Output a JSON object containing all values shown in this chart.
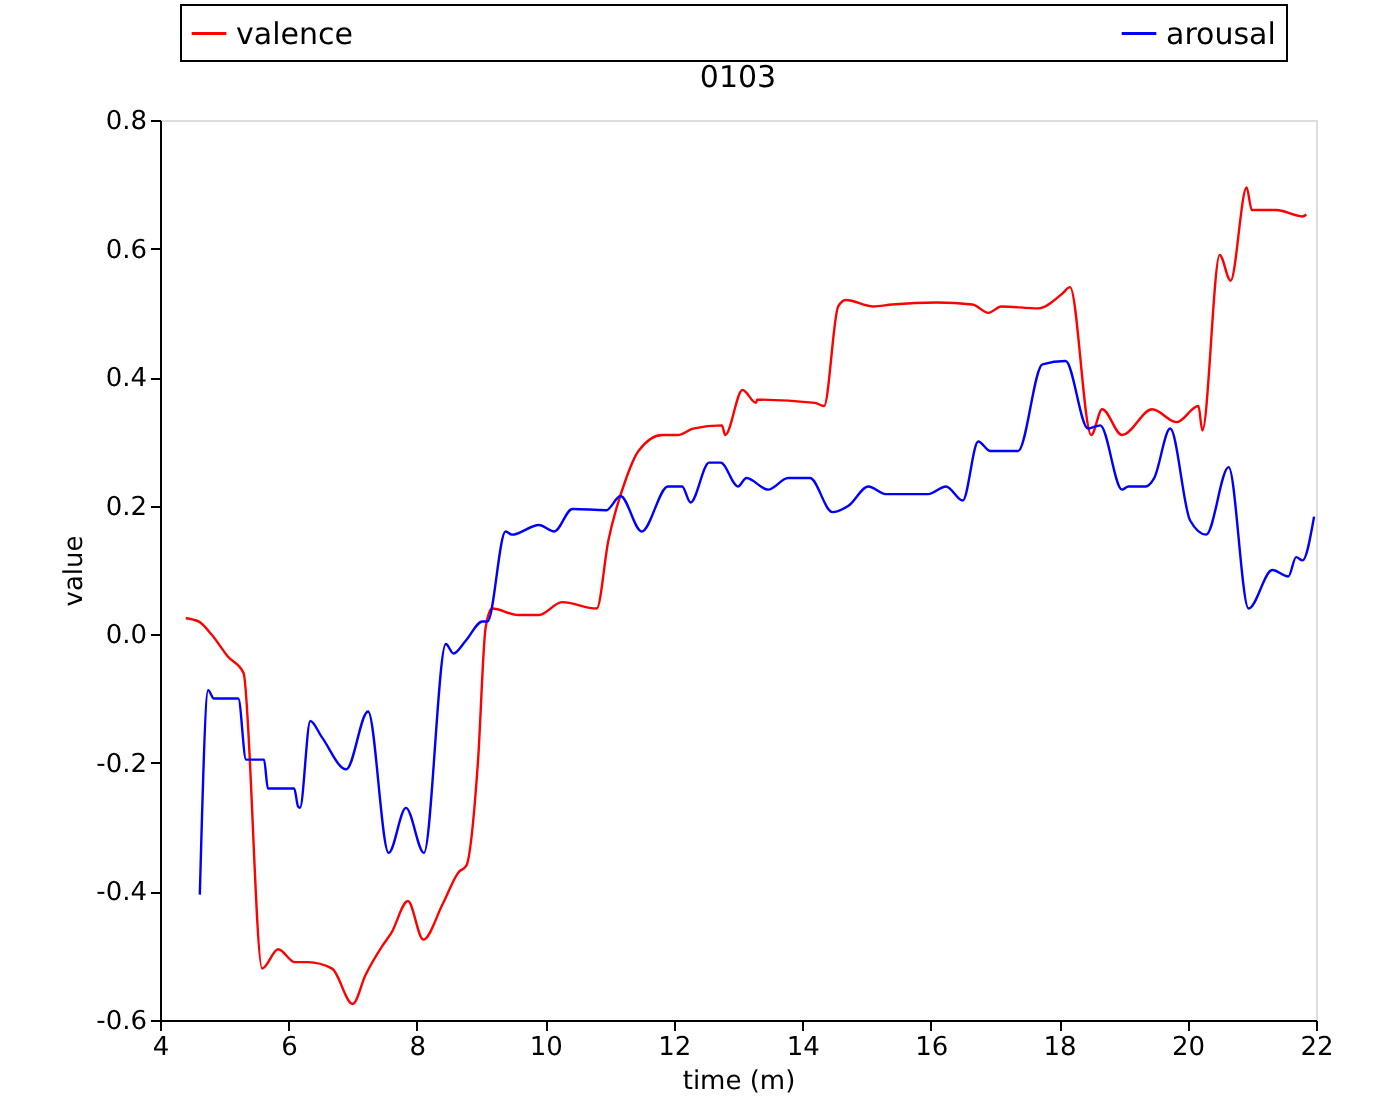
{
  "chart_data": {
    "type": "line",
    "title": "0103",
    "xlabel": "time (m)",
    "ylabel": "value",
    "xlim": [
      4,
      22
    ],
    "xticks": [
      4,
      6,
      8,
      10,
      12,
      14,
      16,
      18,
      20,
      22
    ],
    "ylim": [
      -0.6,
      0.8
    ],
    "yticks": [
      -0.6,
      -0.4,
      -0.2,
      {
        "value": 0,
        "label": "0.0"
      },
      0.2,
      0.4,
      0.6,
      0.8
    ],
    "grid": false,
    "legend": "top",
    "marker": "none",
    "line_style": "solid",
    "series": [
      {
        "name": "valence",
        "color": "#ff0000",
        "x": [
          4.4,
          4.6,
          4.8,
          5.06,
          5.3,
          5.59,
          5.84,
          6.1,
          6.3,
          6.68,
          7.0,
          7.2,
          7.46,
          7.6,
          7.86,
          8.1,
          8.4,
          8.65,
          8.77,
          8.95,
          9.07,
          9.17,
          9.58,
          9.9,
          10.26,
          10.8,
          10.98,
          11.25,
          11.45,
          11.82,
          12.07,
          12.3,
          12.75,
          12.8,
          13.07,
          13.28,
          13.3,
          14.2,
          14.34,
          14.56,
          14.68,
          15.1,
          15.4,
          16.1,
          16.65,
          16.9,
          17.1,
          17.68,
          18.05,
          18.17,
          18.5,
          18.67,
          18.98,
          19.45,
          19.83,
          20.17,
          20.23,
          20.5,
          20.67,
          20.92,
          21.0,
          21.38,
          21.79,
          21.85
        ],
        "values": [
          0.025,
          0.02,
          0.0,
          -0.035,
          -0.06,
          -0.52,
          -0.49,
          -0.51,
          -0.51,
          -0.52,
          -0.575,
          -0.53,
          -0.485,
          -0.465,
          -0.415,
          -0.475,
          -0.42,
          -0.37,
          -0.36,
          -0.2,
          0.01,
          0.04,
          0.03,
          0.03,
          0.05,
          0.04,
          0.145,
          0.24,
          0.285,
          0.31,
          0.31,
          0.32,
          0.325,
          0.31,
          0.38,
          0.36,
          0.365,
          0.36,
          0.355,
          0.51,
          0.52,
          0.51,
          0.513,
          0.516,
          0.513,
          0.5,
          0.51,
          0.507,
          0.53,
          0.54,
          0.31,
          0.35,
          0.31,
          0.35,
          0.33,
          0.355,
          0.317,
          0.59,
          0.55,
          0.695,
          0.66,
          0.66,
          0.65,
          0.653
        ]
      },
      {
        "name": "arousal",
        "color": "#0000ff",
        "x": [
          4.62,
          4.75,
          4.84,
          5.22,
          5.34,
          5.62,
          5.68,
          6.09,
          6.15,
          6.18,
          6.34,
          6.52,
          6.9,
          7.24,
          7.56,
          7.83,
          8.11,
          8.45,
          8.57,
          8.76,
          9.02,
          9.1,
          9.38,
          9.48,
          9.9,
          10.14,
          10.42,
          10.95,
          11.17,
          11.5,
          11.91,
          12.13,
          12.26,
          12.55,
          12.73,
          13.0,
          13.13,
          13.47,
          13.78,
          14.12,
          14.47,
          14.72,
          15.03,
          15.3,
          15.96,
          16.24,
          16.5,
          16.74,
          16.93,
          17.36,
          17.74,
          18.1,
          18.45,
          18.64,
          18.98,
          19.08,
          19.35,
          19.48,
          19.73,
          20.04,
          20.29,
          20.64,
          20.95,
          21.32,
          21.57,
          21.69,
          21.79,
          21.97
        ],
        "values": [
          -0.405,
          -0.087,
          -0.1,
          -0.1,
          -0.195,
          -0.195,
          -0.24,
          -0.24,
          -0.268,
          -0.27,
          -0.135,
          -0.16,
          -0.21,
          -0.12,
          -0.34,
          -0.27,
          -0.34,
          -0.015,
          -0.03,
          -0.01,
          0.02,
          0.02,
          0.16,
          0.155,
          0.17,
          0.16,
          0.195,
          0.193,
          0.215,
          0.16,
          0.23,
          0.23,
          0.205,
          0.267,
          0.267,
          0.23,
          0.243,
          0.225,
          0.243,
          0.243,
          0.19,
          0.2,
          0.23,
          0.218,
          0.218,
          0.23,
          0.208,
          0.3,
          0.285,
          0.285,
          0.42,
          0.425,
          0.32,
          0.325,
          0.225,
          0.23,
          0.23,
          0.243,
          0.32,
          0.177,
          0.155,
          0.26,
          0.04,
          0.1,
          0.09,
          0.12,
          0.115,
          0.183
        ]
      }
    ]
  }
}
